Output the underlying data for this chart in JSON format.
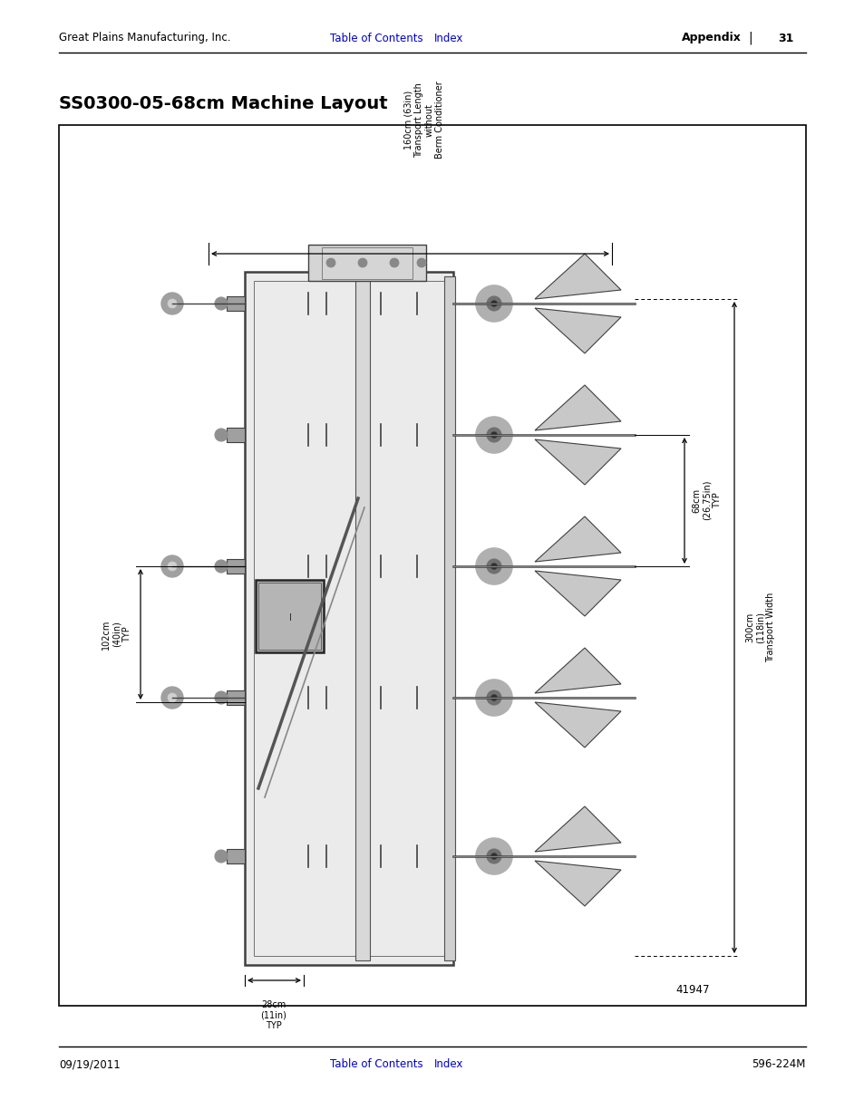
{
  "page_title": "SS0300-05-68cm Machine Layout",
  "header_left": "Great Plains Manufacturing, Inc.",
  "header_center_link1": "Table of Contents",
  "header_center_link2": "Index",
  "header_right": "Appendix",
  "header_page": "31",
  "footer_left": "09/19/2011",
  "footer_center_link1": "Table of Contents",
  "footer_center_link2": "Index",
  "footer_right": "596-224M",
  "figure_number": "41947",
  "link_color": "#0000CC",
  "text_color": "#000000",
  "bg_color": "#FFFFFF",
  "box_border_color": "#000000",
  "diagram_bg": "#FFFFFF",
  "mc": "#404040",
  "mc_light": "#C0C0C0",
  "mc_mid": "#808080"
}
